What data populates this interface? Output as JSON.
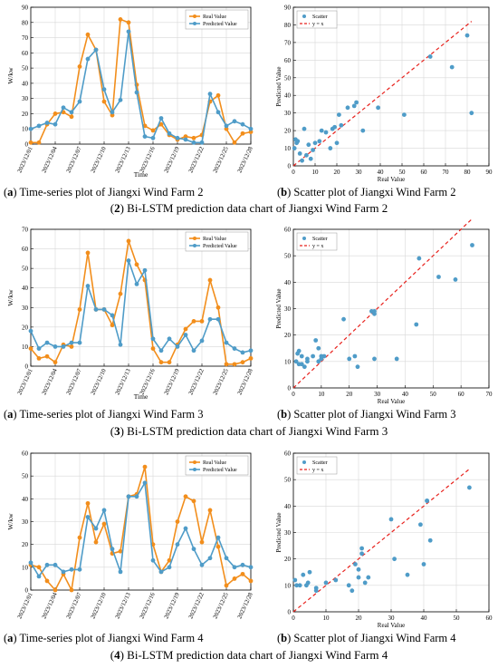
{
  "colors": {
    "real": "#F28E1C",
    "pred": "#4F9CC8",
    "scatter": "#4F9CC8",
    "fit": "#E8211C"
  },
  "figures": [
    {
      "group_num": "2",
      "group_caption": "Bi-LSTM prediction data chart of Jiangxi Wind Farm 2",
      "ts_label": "a",
      "ts_caption": "Time-series plot of Jiangxi Wind Farm 2",
      "sc_label": "b",
      "sc_caption": "Scatter plot of Jiangxi Wind Farm 2"
    },
    {
      "group_num": "3",
      "group_caption": "Bi-LSTM prediction data chart of Jiangxi Wind Farm 3",
      "ts_label": "a",
      "ts_caption": "Time-series plot of Jiangxi Wind Farm 3",
      "sc_label": "b",
      "sc_caption": "Scatter plot of Jiangxi Wind Farm 3"
    },
    {
      "group_num": "4",
      "group_caption": "Bi-LSTM prediction data chart of Jiangxi Wind Farm 4",
      "ts_label": "a",
      "ts_caption": "Time-series plot of Jiangxi Wind Farm 4",
      "sc_label": "b",
      "sc_caption": "Scatter plot of Jiangxi Wind Farm 4"
    }
  ],
  "chart_data": [
    {
      "type": "line",
      "title": "",
      "xlabel": "Time",
      "ylabel": "W/kw",
      "x_tick_labels": [
        "2023/12/01",
        "2023/12/04",
        "2023/12/07",
        "2023/12/10",
        "2023/12/13",
        "2023/12/16",
        "2023/12/19",
        "2023/12/22",
        "2023/12/25",
        "2023/12/28"
      ],
      "x_tick_positions": [
        1,
        4,
        7,
        10,
        13,
        16,
        19,
        22,
        25,
        28
      ],
      "xlim": [
        1,
        28
      ],
      "ylim": [
        0,
        90
      ],
      "yticks": [
        0,
        10,
        20,
        30,
        40,
        50,
        60,
        70,
        80,
        90
      ],
      "grid": true,
      "legend": "top-right",
      "series": [
        {
          "name": "Real Value",
          "x": [
            1,
            2,
            3,
            4,
            5,
            6,
            7,
            8,
            9,
            10,
            11,
            12,
            13,
            14,
            15,
            16,
            17,
            18,
            19,
            20,
            21,
            22,
            23,
            24,
            25,
            26,
            27,
            28
          ],
          "values": [
            1,
            1,
            13,
            20,
            21,
            18,
            51,
            72,
            62,
            28,
            19,
            82,
            80,
            39,
            12,
            9,
            13,
            6,
            3,
            5,
            4,
            6,
            28,
            32,
            10,
            1,
            7,
            8
          ]
        },
        {
          "name": "Predicted Value",
          "x": [
            1,
            2,
            3,
            4,
            5,
            6,
            7,
            8,
            9,
            10,
            11,
            12,
            13,
            14,
            15,
            16,
            17,
            18,
            19,
            20,
            21,
            22,
            23,
            24,
            25,
            26,
            27,
            28
          ],
          "values": [
            10,
            12,
            14,
            13,
            24,
            21,
            28,
            56,
            62,
            36,
            21,
            29,
            74,
            34,
            5,
            4,
            17,
            7,
            4,
            3,
            1,
            1,
            33,
            21,
            12,
            15,
            13,
            10
          ]
        }
      ]
    },
    {
      "type": "scatter",
      "title": "",
      "xlabel": "Real Value",
      "ylabel": "Predicted Value",
      "xlim": [
        0,
        90
      ],
      "ylim": [
        0,
        90
      ],
      "xticks": [
        0,
        10,
        20,
        30,
        40,
        50,
        60,
        70,
        80,
        90
      ],
      "yticks": [
        0,
        10,
        20,
        30,
        40,
        50,
        60,
        70,
        80,
        90
      ],
      "grid": true,
      "legend": "top-left",
      "series": [
        {
          "name": "Scatter",
          "x": [
            0.5,
            1,
            1.5,
            2,
            3,
            4,
            5,
            6,
            7,
            8,
            9,
            10,
            12,
            13,
            15,
            17,
            18,
            19,
            20,
            21,
            22,
            25,
            28,
            29,
            32,
            39,
            51,
            63,
            73,
            80,
            82
          ],
          "y": [
            10,
            15,
            13,
            14,
            7,
            3,
            21,
            6,
            12,
            4,
            9,
            13,
            14,
            20,
            19,
            10,
            21,
            22,
            13,
            29,
            23,
            33,
            34,
            36,
            20,
            33,
            29,
            62,
            56,
            74,
            30
          ]
        },
        {
          "name": "y = x",
          "x": [
            0,
            82
          ],
          "y": [
            0,
            82
          ]
        }
      ]
    },
    {
      "type": "line",
      "title": "",
      "xlabel": "Time",
      "ylabel": "W/kw",
      "x_tick_labels": [
        "2023/12/01",
        "2023/12/04",
        "2023/12/07",
        "2023/12/10",
        "2023/12/13",
        "2023/12/16",
        "2023/12/19",
        "2023/12/22",
        "2023/12/25",
        "2023/12/28"
      ],
      "x_tick_positions": [
        1,
        4,
        7,
        10,
        13,
        16,
        19,
        22,
        25,
        28
      ],
      "xlim": [
        1,
        28
      ],
      "ylim": [
        0,
        70
      ],
      "yticks": [
        0,
        10,
        20,
        30,
        40,
        50,
        60,
        70
      ],
      "grid": true,
      "legend": "top-right",
      "series": [
        {
          "name": "Real Value",
          "x": [
            1,
            2,
            3,
            4,
            5,
            6,
            7,
            8,
            9,
            10,
            11,
            12,
            13,
            14,
            15,
            16,
            17,
            18,
            19,
            20,
            21,
            22,
            23,
            24,
            25,
            26,
            27,
            28
          ],
          "values": [
            9,
            4,
            5,
            2,
            11,
            10,
            29,
            58,
            29,
            29,
            21,
            37,
            64,
            52,
            44,
            9,
            2,
            2,
            11,
            19,
            23,
            23,
            44,
            30,
            1,
            1,
            2,
            4
          ]
        },
        {
          "name": "Predicted Value",
          "x": [
            1,
            2,
            3,
            4,
            5,
            6,
            7,
            8,
            9,
            10,
            11,
            12,
            13,
            14,
            15,
            16,
            17,
            18,
            19,
            20,
            21,
            22,
            23,
            24,
            25,
            26,
            27,
            28
          ],
          "values": [
            18,
            9,
            12,
            10,
            10,
            12,
            12,
            41,
            29,
            29,
            26,
            11,
            54,
            42,
            49,
            14,
            8,
            14,
            10,
            16,
            8,
            13,
            24,
            24,
            12,
            9,
            7,
            8
          ]
        }
      ]
    },
    {
      "type": "scatter",
      "title": "",
      "xlabel": "Real Value",
      "ylabel": "Predicted Value",
      "xlim": [
        0,
        70
      ],
      "ylim": [
        0,
        60
      ],
      "xticks": [
        0,
        10,
        20,
        30,
        40,
        50,
        60,
        70
      ],
      "yticks": [
        0,
        10,
        20,
        30,
        40,
        50,
        60
      ],
      "grid": true,
      "legend": "top-left",
      "series": [
        {
          "name": "Scatter",
          "x": [
            1,
            1.5,
            2,
            2,
            3,
            3,
            4,
            5,
            5,
            7,
            8,
            9,
            9,
            10,
            10,
            11,
            18,
            20,
            22,
            23,
            28,
            29,
            29,
            29,
            37,
            44,
            45,
            52,
            58,
            64
          ],
          "y": [
            10,
            13,
            9,
            14,
            12,
            9,
            8,
            10,
            11,
            12,
            18,
            15,
            10,
            12,
            11,
            12,
            26,
            11,
            12,
            8,
            29,
            28,
            29,
            11,
            11,
            24,
            49,
            42,
            41,
            54
          ]
        },
        {
          "name": "y = x",
          "x": [
            0,
            64
          ],
          "y": [
            0,
            64
          ]
        }
      ]
    },
    {
      "type": "line",
      "title": "",
      "xlabel": "",
      "ylabel": "W/kw",
      "x_tick_labels": [
        "2023/12/01",
        "2023/12/04",
        "2023/12/07",
        "2023/12/10",
        "2023/12/13",
        "2023/12/16",
        "2023/12/19",
        "2023/12/22",
        "2023/12/25",
        "2023/12/28"
      ],
      "x_tick_positions": [
        1,
        4,
        7,
        10,
        13,
        16,
        19,
        22,
        25,
        28
      ],
      "xlim": [
        1,
        28
      ],
      "ylim": [
        0,
        60
      ],
      "yticks": [
        0,
        10,
        20,
        30,
        40,
        50,
        60
      ],
      "grid": true,
      "legend": "top-right",
      "series": [
        {
          "name": "Real Value",
          "x": [
            1,
            2,
            3,
            4,
            5,
            6,
            7,
            8,
            9,
            10,
            11,
            12,
            13,
            14,
            15,
            16,
            17,
            18,
            19,
            20,
            21,
            22,
            23,
            24,
            25,
            26,
            27,
            28
          ],
          "values": [
            11,
            10,
            4,
            0,
            7,
            0,
            23,
            38,
            21,
            29,
            16,
            17,
            41,
            42,
            54,
            20,
            8,
            13,
            30,
            41,
            39,
            21,
            35,
            19,
            2,
            5,
            7,
            4
          ]
        },
        {
          "name": "Predicted Value",
          "x": [
            1,
            2,
            3,
            4,
            5,
            6,
            7,
            8,
            9,
            10,
            11,
            12,
            13,
            14,
            15,
            16,
            17,
            18,
            19,
            20,
            21,
            22,
            23,
            24,
            25,
            26,
            27,
            28
          ],
          "values": [
            12,
            6,
            11,
            11,
            8,
            9,
            9,
            32,
            27,
            35,
            18,
            8,
            41,
            41,
            47,
            13,
            8,
            10,
            20,
            27,
            18,
            11,
            14,
            23,
            14,
            10,
            11,
            10
          ]
        }
      ]
    },
    {
      "type": "scatter",
      "title": "",
      "xlabel": "Real Value",
      "ylabel": "Predicted Value",
      "xlim": [
        0,
        60
      ],
      "ylim": [
        0,
        60
      ],
      "xticks": [
        0,
        10,
        20,
        30,
        40,
        50,
        60
      ],
      "yticks": [
        0,
        10,
        20,
        30,
        40,
        50,
        60
      ],
      "grid": true,
      "legend": "top-left",
      "series": [
        {
          "name": "Scatter",
          "x": [
            0.5,
            1,
            2,
            3,
            4,
            4.5,
            5,
            7,
            7,
            10,
            13,
            17,
            18,
            19,
            20,
            20,
            21,
            21,
            22,
            23,
            30,
            31,
            35,
            39,
            40,
            41,
            42,
            41,
            54
          ],
          "y": [
            12,
            10,
            10,
            14,
            10,
            11,
            15,
            9,
            8,
            11,
            12,
            10,
            8,
            18,
            13,
            16,
            22,
            24,
            11,
            13,
            35,
            20,
            14,
            33,
            18,
            42,
            27,
            42,
            47
          ]
        },
        {
          "name": "y = x",
          "x": [
            0,
            54
          ],
          "y": [
            0,
            54
          ]
        }
      ]
    }
  ]
}
